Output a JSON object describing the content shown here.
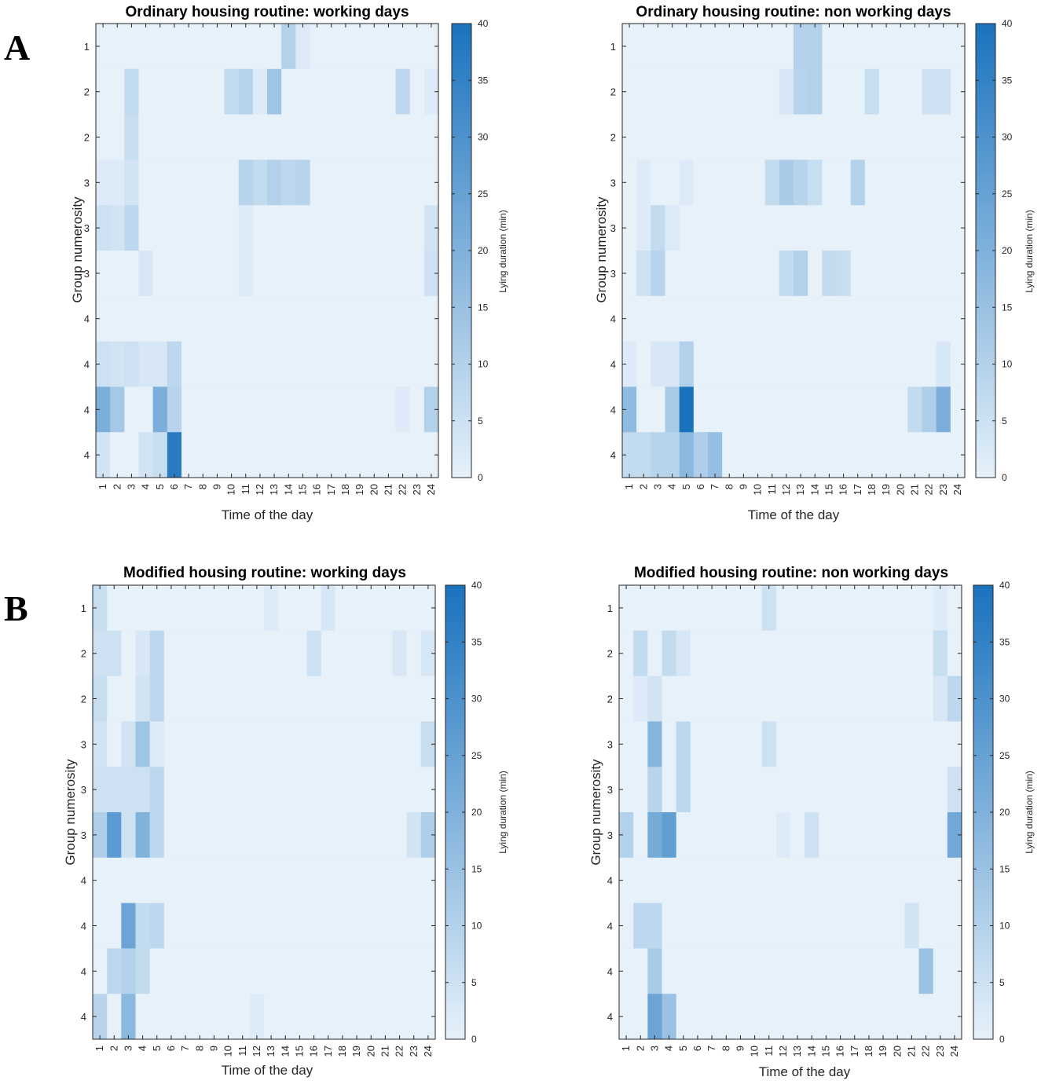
{
  "panel_labels": [
    "A",
    "B"
  ],
  "colorbar": {
    "low": "#e6f1fa",
    "high": "#1a72bd"
  },
  "chart_data": [
    {
      "type": "heatmap",
      "title": "Ordinary housing routine: working days",
      "xlabel": "Time of the day",
      "ylabel": "Group numerosity",
      "colorbar_label": "Lying duration (min)",
      "clim": [
        0,
        40
      ],
      "colorbar_ticks": [
        0,
        5,
        10,
        15,
        20,
        25,
        30,
        35,
        40
      ],
      "x_categories": [
        "1",
        "2",
        "3",
        "4",
        "5",
        "6",
        "7",
        "8",
        "9",
        "10",
        "11",
        "12",
        "13",
        "14",
        "15",
        "16",
        "17",
        "18",
        "19",
        "20",
        "21",
        "22",
        "23",
        "24"
      ],
      "y_categories": [
        "1",
        "2",
        "2",
        "3",
        "3",
        "3",
        "4",
        "4",
        "4",
        "4"
      ],
      "values": [
        [
          0,
          0,
          0,
          0,
          0,
          0,
          0,
          0,
          0,
          0,
          0,
          0,
          0,
          10,
          2,
          0,
          0,
          0,
          0,
          0,
          0,
          0,
          0,
          0
        ],
        [
          0,
          0,
          7,
          0,
          0,
          0,
          0,
          0,
          0,
          7,
          9,
          2,
          14,
          0,
          0,
          0,
          0,
          0,
          0,
          0,
          0,
          8,
          0,
          2
        ],
        [
          0,
          0,
          6,
          0,
          0,
          0,
          0,
          0,
          0,
          0,
          0,
          0,
          0,
          0,
          0,
          0,
          0,
          0,
          0,
          0,
          0,
          0,
          0,
          0
        ],
        [
          2,
          2,
          4,
          0,
          0,
          0,
          0,
          0,
          0,
          0,
          9,
          7,
          10,
          8,
          9,
          0,
          0,
          0,
          0,
          0,
          0,
          0,
          0,
          0
        ],
        [
          5,
          4,
          8,
          0,
          0,
          0,
          0,
          0,
          0,
          0,
          2,
          0,
          0,
          0,
          0,
          0,
          0,
          0,
          0,
          0,
          0,
          0,
          0,
          4
        ],
        [
          0,
          0,
          0,
          3,
          0,
          0,
          0,
          0,
          0,
          0,
          2,
          0,
          0,
          0,
          0,
          0,
          0,
          0,
          0,
          0,
          0,
          0,
          0,
          5
        ],
        [
          0,
          0,
          0,
          0,
          0,
          0,
          0,
          0,
          0,
          0,
          0,
          0,
          0,
          0,
          0,
          0,
          0,
          0,
          0,
          0,
          0,
          0,
          0,
          0
        ],
        [
          5,
          4,
          5,
          3,
          3,
          8,
          0,
          0,
          0,
          0,
          0,
          0,
          0,
          0,
          0,
          0,
          0,
          0,
          0,
          0,
          0,
          0,
          0,
          0
        ],
        [
          21,
          13,
          0,
          0,
          21,
          9,
          0,
          0,
          0,
          0,
          0,
          0,
          0,
          0,
          0,
          0,
          0,
          0,
          0,
          0,
          0,
          2,
          0,
          10
        ],
        [
          4,
          0,
          0,
          4,
          6,
          37,
          0,
          0,
          0,
          0,
          0,
          0,
          0,
          0,
          0,
          0,
          0,
          0,
          0,
          0,
          0,
          0,
          0,
          0
        ]
      ]
    },
    {
      "type": "heatmap",
      "title": "Ordinary housing routine: non working days",
      "xlabel": "Time of the day",
      "ylabel": "Group numerosity",
      "colorbar_label": "Lying duration (min)",
      "clim": [
        0,
        40
      ],
      "colorbar_ticks": [
        0,
        5,
        10,
        15,
        20,
        25,
        30,
        35,
        40
      ],
      "x_categories": [
        "1",
        "2",
        "3",
        "4",
        "5",
        "6",
        "7",
        "8",
        "9",
        "10",
        "11",
        "12",
        "13",
        "14",
        "15",
        "16",
        "17",
        "18",
        "19",
        "20",
        "21",
        "22",
        "23",
        "24"
      ],
      "y_categories": [
        "1",
        "2",
        "2",
        "3",
        "3",
        "3",
        "4",
        "4",
        "4",
        "4"
      ],
      "values": [
        [
          0,
          0,
          0,
          0,
          0,
          0,
          0,
          0,
          0,
          0,
          0,
          0,
          10,
          10,
          0,
          0,
          0,
          0,
          0,
          0,
          0,
          0,
          0,
          0
        ],
        [
          0,
          0,
          0,
          0,
          0,
          0,
          0,
          0,
          0,
          0,
          0,
          3,
          9,
          10,
          0,
          0,
          0,
          6,
          0,
          0,
          0,
          5,
          5,
          0
        ],
        [
          0,
          0,
          0,
          0,
          0,
          0,
          0,
          0,
          0,
          0,
          0,
          0,
          0,
          0,
          0,
          0,
          0,
          0,
          0,
          0,
          0,
          0,
          0,
          0
        ],
        [
          0,
          2,
          0,
          0,
          2,
          0,
          0,
          0,
          0,
          0,
          7,
          12,
          9,
          6,
          0,
          0,
          10,
          0,
          0,
          0,
          0,
          0,
          0,
          0
        ],
        [
          0,
          2,
          7,
          2,
          0,
          0,
          0,
          0,
          0,
          0,
          0,
          0,
          0,
          0,
          0,
          0,
          0,
          0,
          0,
          0,
          0,
          0,
          0,
          0
        ],
        [
          0,
          5,
          9,
          0,
          0,
          0,
          0,
          0,
          0,
          0,
          0,
          7,
          10,
          0,
          7,
          6,
          0,
          0,
          0,
          0,
          0,
          0,
          0,
          0
        ],
        [
          0,
          0,
          0,
          0,
          0,
          0,
          0,
          0,
          0,
          0,
          0,
          0,
          0,
          0,
          0,
          0,
          0,
          0,
          0,
          0,
          0,
          0,
          0,
          0
        ],
        [
          2,
          0,
          3,
          3,
          10,
          0,
          0,
          0,
          0,
          0,
          0,
          0,
          0,
          0,
          0,
          0,
          0,
          0,
          0,
          0,
          0,
          0,
          3,
          0
        ],
        [
          17,
          0,
          0,
          12,
          40,
          0,
          0,
          0,
          0,
          0,
          0,
          0,
          0,
          0,
          0,
          0,
          0,
          0,
          0,
          0,
          7,
          11,
          21,
          0
        ],
        [
          7,
          7,
          9,
          9,
          18,
          11,
          16,
          0,
          0,
          0,
          0,
          0,
          0,
          0,
          0,
          0,
          0,
          0,
          0,
          0,
          0,
          0,
          0,
          0
        ]
      ]
    },
    {
      "type": "heatmap",
      "title": "Modified housing routine: working days",
      "xlabel": "Time of the day",
      "ylabel": "Group numerosity",
      "colorbar_label": "Lying duration (min)",
      "clim": [
        0,
        40
      ],
      "colorbar_ticks": [
        0,
        5,
        10,
        15,
        20,
        25,
        30,
        35,
        40
      ],
      "x_categories": [
        "1",
        "2",
        "3",
        "4",
        "5",
        "6",
        "7",
        "8",
        "9",
        "10",
        "11",
        "12",
        "13",
        "14",
        "15",
        "16",
        "17",
        "18",
        "19",
        "20",
        "21",
        "22",
        "23",
        "24"
      ],
      "y_categories": [
        "1",
        "2",
        "2",
        "3",
        "3",
        "3",
        "4",
        "4",
        "4",
        "4"
      ],
      "values": [
        [
          6,
          0,
          0,
          0,
          0,
          0,
          0,
          0,
          0,
          0,
          0,
          0,
          2,
          0,
          0,
          0,
          3,
          0,
          0,
          0,
          0,
          0,
          0,
          0
        ],
        [
          5,
          5,
          0,
          3,
          8,
          0,
          0,
          0,
          0,
          0,
          0,
          0,
          0,
          0,
          0,
          5,
          0,
          0,
          0,
          0,
          0,
          3,
          0,
          3
        ],
        [
          6,
          0,
          0,
          4,
          8,
          0,
          0,
          0,
          0,
          0,
          0,
          0,
          0,
          0,
          0,
          0,
          0,
          0,
          0,
          0,
          0,
          0,
          0,
          0
        ],
        [
          4,
          0,
          4,
          14,
          2,
          0,
          0,
          0,
          0,
          0,
          0,
          0,
          0,
          0,
          0,
          0,
          0,
          0,
          0,
          0,
          0,
          0,
          0,
          6
        ],
        [
          5,
          5,
          5,
          5,
          8,
          0,
          0,
          0,
          0,
          0,
          0,
          0,
          0,
          0,
          0,
          0,
          0,
          0,
          0,
          0,
          0,
          0,
          0,
          0
        ],
        [
          11,
          27,
          5,
          20,
          8,
          0,
          0,
          0,
          0,
          0,
          0,
          0,
          0,
          0,
          0,
          0,
          0,
          0,
          0,
          0,
          0,
          0,
          4,
          11
        ],
        [
          0,
          0,
          0,
          0,
          0,
          0,
          0,
          0,
          0,
          0,
          0,
          0,
          0,
          0,
          0,
          0,
          0,
          0,
          0,
          0,
          0,
          0,
          0,
          0
        ],
        [
          0,
          0,
          24,
          7,
          8,
          0,
          0,
          0,
          0,
          0,
          0,
          0,
          0,
          0,
          0,
          0,
          0,
          0,
          0,
          0,
          0,
          0,
          0,
          0
        ],
        [
          0,
          8,
          10,
          7,
          0,
          0,
          0,
          0,
          0,
          0,
          0,
          0,
          0,
          0,
          0,
          0,
          0,
          0,
          0,
          0,
          0,
          0,
          0,
          0
        ],
        [
          9,
          0,
          18,
          0,
          0,
          0,
          0,
          0,
          0,
          0,
          0,
          2,
          0,
          0,
          0,
          0,
          0,
          0,
          0,
          0,
          0,
          0,
          0,
          0
        ]
      ]
    },
    {
      "type": "heatmap",
      "title": "Modified housing routine: non working days",
      "xlabel": "Time of the day",
      "ylabel": "Group numerosity",
      "colorbar_label": "Lying duration (min)",
      "clim": [
        0,
        40
      ],
      "colorbar_ticks": [
        0,
        5,
        10,
        15,
        20,
        25,
        30,
        35,
        40
      ],
      "x_categories": [
        "1",
        "2",
        "3",
        "4",
        "5",
        "6",
        "7",
        "8",
        "9",
        "10",
        "11",
        "12",
        "13",
        "14",
        "15",
        "16",
        "17",
        "18",
        "19",
        "20",
        "21",
        "22",
        "23",
        "24"
      ],
      "y_categories": [
        "1",
        "2",
        "2",
        "3",
        "3",
        "3",
        "4",
        "4",
        "4",
        "4"
      ],
      "values": [
        [
          0,
          0,
          0,
          0,
          0,
          0,
          0,
          0,
          0,
          0,
          5,
          0,
          0,
          0,
          0,
          0,
          0,
          0,
          0,
          0,
          0,
          0,
          2,
          0
        ],
        [
          0,
          7,
          0,
          7,
          3,
          0,
          0,
          0,
          0,
          0,
          0,
          0,
          0,
          0,
          0,
          0,
          0,
          0,
          0,
          0,
          0,
          0,
          6,
          0
        ],
        [
          0,
          2,
          4,
          0,
          0,
          0,
          0,
          0,
          0,
          0,
          0,
          0,
          0,
          0,
          0,
          0,
          0,
          0,
          0,
          0,
          0,
          0,
          3,
          8
        ],
        [
          0,
          0,
          19,
          0,
          8,
          0,
          0,
          0,
          0,
          0,
          5,
          0,
          0,
          0,
          0,
          0,
          0,
          0,
          0,
          0,
          0,
          0,
          0,
          0
        ],
        [
          0,
          0,
          9,
          0,
          8,
          0,
          0,
          0,
          0,
          0,
          0,
          0,
          0,
          0,
          0,
          0,
          0,
          0,
          0,
          0,
          0,
          0,
          0,
          5
        ],
        [
          10,
          0,
          22,
          26,
          0,
          0,
          0,
          0,
          0,
          0,
          0,
          2,
          0,
          5,
          0,
          0,
          0,
          0,
          0,
          0,
          0,
          0,
          0,
          23
        ],
        [
          0,
          0,
          0,
          0,
          0,
          0,
          0,
          0,
          0,
          0,
          0,
          0,
          0,
          0,
          0,
          0,
          0,
          0,
          0,
          0,
          0,
          0,
          0,
          0
        ],
        [
          0,
          8,
          8,
          0,
          0,
          0,
          0,
          0,
          0,
          0,
          0,
          0,
          0,
          0,
          0,
          0,
          0,
          0,
          0,
          0,
          4,
          0,
          0,
          0
        ],
        [
          0,
          0,
          12,
          0,
          0,
          0,
          0,
          0,
          0,
          0,
          0,
          0,
          0,
          0,
          0,
          0,
          0,
          0,
          0,
          0,
          0,
          15,
          0,
          0
        ],
        [
          0,
          0,
          24,
          15,
          0,
          0,
          0,
          0,
          0,
          0,
          0,
          0,
          0,
          0,
          0,
          0,
          0,
          0,
          0,
          0,
          0,
          0,
          0,
          0
        ]
      ]
    }
  ]
}
